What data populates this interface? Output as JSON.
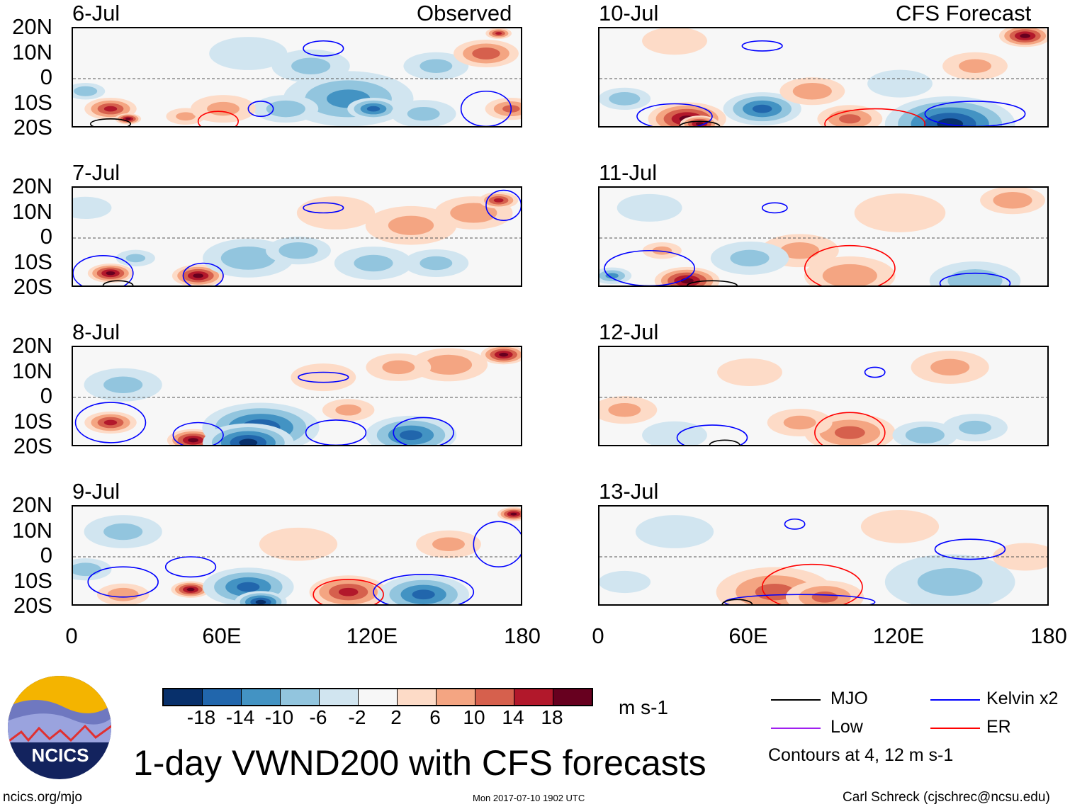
{
  "chart_data": {
    "type": "heatmap",
    "title": "1-day VWND200 with CFS forecasts",
    "units": "m s-1",
    "xlim": [
      0,
      180
    ],
    "ylim": [
      -20,
      20
    ],
    "x_ticks": [
      "0",
      "60E",
      "120E",
      "180"
    ],
    "x_tick_values": [
      0,
      60,
      120,
      180
    ],
    "y_ticks": [
      "20N",
      "10N",
      "0",
      "10S",
      "20S"
    ],
    "y_tick_values": [
      20,
      10,
      0,
      -10,
      -20
    ],
    "column_labels": {
      "left": "Observed",
      "right": "CFS Forecast"
    },
    "colorbar": {
      "levels": [
        "-18",
        "-14",
        "-10",
        "-6",
        "-2",
        "2",
        "6",
        "10",
        "14",
        "18"
      ],
      "colors": [
        "#08306b",
        "#2166ac",
        "#4393c3",
        "#92c5de",
        "#d1e5f0",
        "#f7f7f7",
        "#fddbc7",
        "#f4a582",
        "#d6604d",
        "#b2182b",
        "#67001f"
      ]
    },
    "contour_legend": [
      {
        "label": "MJO",
        "color": "#000000"
      },
      {
        "label": "Kelvin x2",
        "color": "#0000ff"
      },
      {
        "label": "Low",
        "color": "#a020f0"
      },
      {
        "label": "ER",
        "color": "#ff0000"
      }
    ],
    "contour_note": "Contours at 4, 12 m s-1",
    "panels": [
      {
        "date": "6-Jul",
        "column": "left",
        "anomalies": [
          [
            15,
            -12,
            8,
            14
          ],
          [
            22,
            -16,
            4,
            18
          ],
          [
            5,
            -5,
            6,
            -8
          ],
          [
            45,
            -15,
            6,
            6
          ],
          [
            70,
            10,
            12,
            -4
          ],
          [
            95,
            5,
            12,
            -6
          ],
          [
            110,
            -8,
            20,
            -10
          ],
          [
            120,
            -12,
            8,
            -14
          ],
          [
            85,
            -12,
            10,
            -8
          ],
          [
            145,
            5,
            10,
            -6
          ],
          [
            165,
            10,
            10,
            12
          ],
          [
            170,
            18,
            4,
            14
          ],
          [
            175,
            -12,
            8,
            10
          ],
          [
            140,
            -14,
            10,
            -6
          ],
          [
            60,
            -12,
            10,
            6
          ]
        ],
        "contours": [
          [
            "Kelvin",
            100,
            12,
            8,
            3
          ],
          [
            "Kelvin",
            75,
            -12,
            5,
            3
          ],
          [
            "ER",
            58,
            -17,
            8,
            4
          ],
          [
            "Kelvin",
            165,
            -12,
            10,
            7
          ],
          [
            "MJO",
            15,
            -18,
            8,
            2
          ]
        ]
      },
      {
        "date": "7-Jul",
        "column": "left",
        "anomalies": [
          [
            15,
            -14,
            7,
            18
          ],
          [
            50,
            -15,
            8,
            18
          ],
          [
            25,
            -8,
            6,
            -6
          ],
          [
            70,
            -8,
            14,
            -8
          ],
          [
            90,
            -5,
            10,
            -8
          ],
          [
            120,
            -10,
            12,
            -6
          ],
          [
            135,
            5,
            14,
            6
          ],
          [
            160,
            10,
            12,
            8
          ],
          [
            170,
            15,
            6,
            14
          ],
          [
            145,
            -10,
            10,
            -6
          ],
          [
            5,
            12,
            8,
            -4
          ],
          [
            105,
            10,
            12,
            4
          ]
        ],
        "contours": [
          [
            "Kelvin",
            100,
            12,
            8,
            2
          ],
          [
            "Kelvin",
            172,
            13,
            7,
            6
          ],
          [
            "Kelvin",
            12,
            -14,
            12,
            7
          ],
          [
            "Kelvin",
            52,
            -15,
            8,
            5
          ],
          [
            "MJO",
            18,
            -19,
            6,
            2
          ]
        ]
      },
      {
        "date": "8-Jul",
        "column": "left",
        "anomalies": [
          [
            15,
            -10,
            8,
            14
          ],
          [
            48,
            -17,
            8,
            18
          ],
          [
            75,
            -12,
            18,
            -16
          ],
          [
            70,
            -18,
            14,
            -18
          ],
          [
            135,
            -15,
            14,
            -14
          ],
          [
            150,
            13,
            12,
            8
          ],
          [
            172,
            17,
            7,
            18
          ],
          [
            100,
            8,
            10,
            4
          ],
          [
            110,
            -5,
            8,
            6
          ],
          [
            20,
            5,
            12,
            -6
          ],
          [
            130,
            12,
            10,
            6
          ]
        ],
        "contours": [
          [
            "Kelvin",
            100,
            8,
            10,
            2
          ],
          [
            "Kelvin",
            105,
            -14,
            12,
            5
          ],
          [
            "Kelvin",
            140,
            -14,
            12,
            6
          ],
          [
            "Kelvin",
            15,
            -10,
            14,
            8
          ],
          [
            "Kelvin",
            50,
            -15,
            10,
            5
          ]
        ]
      },
      {
        "date": "9-Jul",
        "column": "left",
        "anomalies": [
          [
            47,
            -13,
            6,
            18
          ],
          [
            20,
            -15,
            8,
            8
          ],
          [
            70,
            -12,
            14,
            -14
          ],
          [
            75,
            -18,
            8,
            -18
          ],
          [
            110,
            -14,
            12,
            14
          ],
          [
            140,
            -15,
            14,
            -14
          ],
          [
            176,
            17,
            5,
            18
          ],
          [
            20,
            10,
            12,
            -6
          ],
          [
            90,
            5,
            12,
            4
          ],
          [
            150,
            5,
            10,
            6
          ],
          [
            5,
            -5,
            8,
            -8
          ]
        ],
        "contours": [
          [
            "Kelvin",
            47,
            -4,
            10,
            4
          ],
          [
            "Kelvin",
            20,
            -10,
            14,
            6
          ],
          [
            "ER",
            110,
            -15,
            14,
            6
          ],
          [
            "Kelvin",
            170,
            5,
            10,
            9
          ],
          [
            "Kelvin",
            140,
            -14,
            20,
            7
          ]
        ]
      },
      {
        "date": "10-Jul",
        "column": "right",
        "anomalies": [
          [
            35,
            -16,
            12,
            18
          ],
          [
            40,
            -18,
            6,
            18
          ],
          [
            65,
            -12,
            12,
            -14
          ],
          [
            85,
            -5,
            10,
            8
          ],
          [
            100,
            -16,
            10,
            10
          ],
          [
            140,
            -18,
            20,
            -18
          ],
          [
            170,
            17,
            8,
            18
          ],
          [
            30,
            15,
            10,
            4
          ],
          [
            10,
            -8,
            8,
            -8
          ],
          [
            150,
            5,
            10,
            6
          ],
          [
            120,
            -2,
            10,
            -4
          ]
        ],
        "contours": [
          [
            "Kelvin",
            65,
            13,
            8,
            2
          ],
          [
            "Kelvin",
            30,
            -15,
            15,
            5
          ],
          [
            "ER",
            110,
            -18,
            20,
            6
          ],
          [
            "Kelvin",
            150,
            -14,
            20,
            5
          ],
          [
            "MJO",
            40,
            -19,
            8,
            2
          ]
        ]
      },
      {
        "date": "11-Jul",
        "column": "right",
        "anomalies": [
          [
            35,
            -17,
            10,
            18
          ],
          [
            25,
            -5,
            6,
            6
          ],
          [
            100,
            -15,
            14,
            8
          ],
          [
            80,
            -5,
            12,
            6
          ],
          [
            150,
            -17,
            14,
            -8
          ],
          [
            165,
            15,
            10,
            8
          ],
          [
            120,
            10,
            14,
            4
          ],
          [
            20,
            12,
            10,
            -4
          ],
          [
            60,
            -8,
            12,
            -6
          ],
          [
            5,
            -15,
            6,
            -10
          ]
        ],
        "contours": [
          [
            "Kelvin",
            70,
            12,
            5,
            2
          ],
          [
            "Kelvin",
            20,
            -12,
            18,
            7
          ],
          [
            "ER",
            100,
            -12,
            18,
            9
          ],
          [
            "Kelvin",
            150,
            -18,
            14,
            4
          ],
          [
            "MJO",
            45,
            -19,
            10,
            2
          ]
        ]
      },
      {
        "date": "12-Jul",
        "column": "right",
        "anomalies": [
          [
            100,
            -14,
            14,
            10
          ],
          [
            80,
            -10,
            10,
            6
          ],
          [
            130,
            -15,
            10,
            -8
          ],
          [
            150,
            -12,
            10,
            -6
          ],
          [
            10,
            -5,
            10,
            6
          ],
          [
            60,
            10,
            10,
            4
          ],
          [
            140,
            12,
            12,
            6
          ],
          [
            30,
            -15,
            10,
            -4
          ]
        ],
        "contours": [
          [
            "ER",
            100,
            -14,
            14,
            8
          ],
          [
            "Kelvin",
            45,
            -16,
            14,
            5
          ],
          [
            "Kelvin",
            110,
            10,
            4,
            2
          ],
          [
            "MJO",
            50,
            -19,
            6,
            2
          ]
        ]
      },
      {
        "date": "13-Jul",
        "column": "right",
        "anomalies": [
          [
            70,
            -14,
            18,
            10
          ],
          [
            90,
            -16,
            12,
            10
          ],
          [
            140,
            -10,
            20,
            -6
          ],
          [
            30,
            10,
            12,
            -4
          ],
          [
            120,
            12,
            12,
            4
          ],
          [
            10,
            -10,
            8,
            -4
          ],
          [
            170,
            0,
            10,
            4
          ]
        ],
        "contours": [
          [
            "ER",
            85,
            -12,
            20,
            9
          ],
          [
            "Kelvin",
            148,
            3,
            14,
            4
          ],
          [
            "Kelvin",
            80,
            -18,
            30,
            3
          ],
          [
            "Kelvin",
            78,
            13,
            4,
            2
          ],
          [
            "MJO",
            55,
            -19,
            6,
            2
          ]
        ]
      }
    ]
  },
  "footer": {
    "logo_text": "NCICS",
    "url": "ncics.org/mjo",
    "timestamp": "Mon 2017-07-10 1902 UTC",
    "author": "Carl Schreck (cjschrec@ncsu.edu)"
  }
}
